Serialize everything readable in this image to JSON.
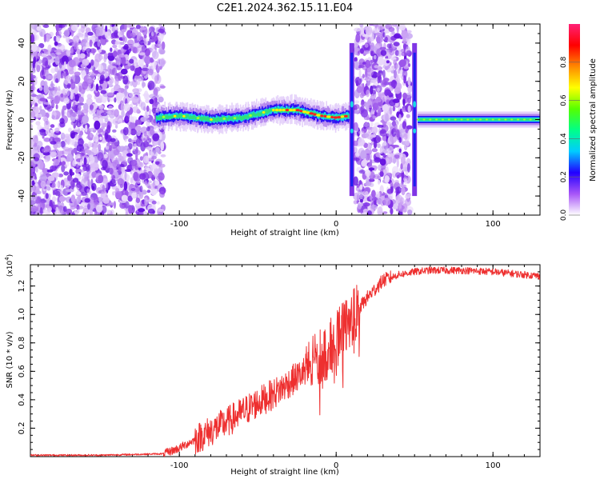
{
  "figure": {
    "title": "C2E1.2024.362.15.11.E04"
  },
  "chart_data": [
    {
      "type": "heatmap",
      "xlabel": "Height of straight line (km)",
      "ylabel": "Frequency (Hz)",
      "xlim": [
        -195,
        130
      ],
      "ylim": [
        -50,
        50
      ],
      "x_ticks": [
        -100,
        0,
        100
      ],
      "y_ticks": [
        -40,
        -20,
        0,
        20,
        40
      ],
      "colorbar": {
        "label": "Normalized spectral amplitude",
        "range": [
          0,
          1
        ],
        "ticks": [
          "0.0",
          "0.2",
          "0.4",
          "0.6",
          "0.8"
        ],
        "tick_values": [
          0,
          0.2,
          0.4,
          0.6,
          0.8
        ],
        "colors": [
          "#ffffff",
          "#a855f7",
          "#2200ff",
          "#00ccff",
          "#00ff88",
          "#55ff00",
          "#ffff00",
          "#ff8800",
          "#ff0000",
          "#ff2277"
        ]
      },
      "features": {
        "noise_regions_km": [
          [
            -195,
            -110
          ],
          [
            12,
            47
          ]
        ],
        "ridge": [
          [
            -115,
            1
          ],
          [
            -100,
            2
          ],
          [
            -80,
            0
          ],
          [
            -60,
            1
          ],
          [
            -40,
            5
          ],
          [
            -25,
            5
          ],
          [
            -10,
            2
          ],
          [
            0,
            1
          ],
          [
            8,
            2
          ]
        ],
        "ridge_right_segment": {
          "from_km": 52,
          "to_km": 130,
          "frequency_hz": 0
        },
        "vertical_streaks_km": [
          10,
          50
        ]
      }
    },
    {
      "type": "line",
      "xlabel": "Height of straight line (km)",
      "ylabel": "SNR (10 * v/v)",
      "y_multiplier": "(x10",
      "y_multiplier_exp": "4",
      "xlim": [
        -195,
        130
      ],
      "ylim": [
        0,
        1.35
      ],
      "x_ticks": [
        -100,
        0,
        100
      ],
      "y_ticks": [
        0.2,
        0.4,
        0.6,
        0.8,
        1.0,
        1.2
      ],
      "y_tick_labels": [
        "0.2",
        "0.4",
        "0.6",
        "0.8",
        "1.0",
        "1.2"
      ],
      "series": [
        {
          "color": "#ee3030",
          "x": [
            -195,
            -150,
            -110,
            -100,
            -90,
            -80,
            -70,
            -60,
            -50,
            -40,
            -30,
            -20,
            -10,
            0,
            5,
            10,
            20,
            30,
            40,
            50,
            60,
            80,
            100,
            130
          ],
          "y": [
            0.01,
            0.01,
            0.02,
            0.06,
            0.12,
            0.18,
            0.24,
            0.31,
            0.38,
            0.44,
            0.52,
            0.6,
            0.7,
            0.82,
            0.9,
            0.98,
            1.12,
            1.24,
            1.28,
            1.3,
            1.31,
            1.31,
            1.3,
            1.27
          ]
        }
      ]
    }
  ]
}
